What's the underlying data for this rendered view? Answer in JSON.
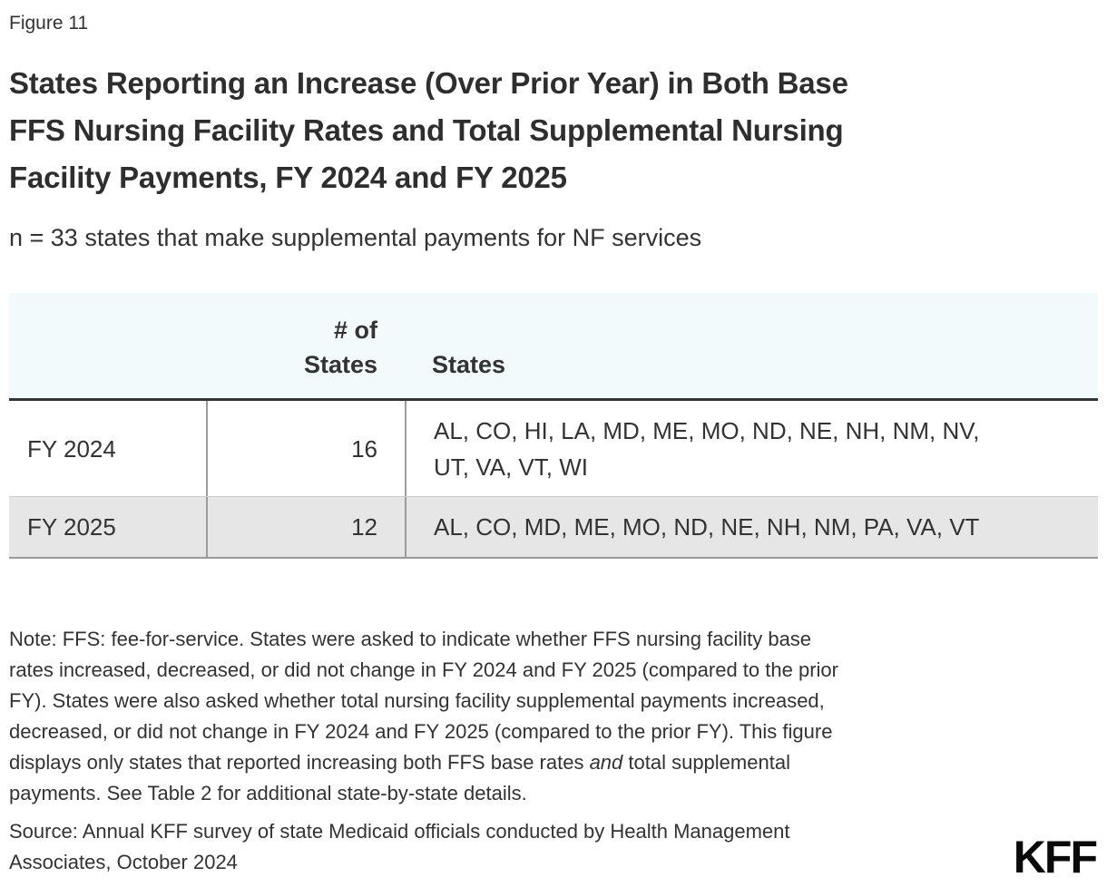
{
  "figure_label": "Figure 11",
  "title": "States Reporting an Increase (Over Prior Year) in Both Base\nFFS Nursing Facility Rates and Total Supplemental Nursing\nFacility Payments, FY 2024 and FY 2025",
  "subtitle": "n = 33 states that make supplemental payments for NF services",
  "table": {
    "header": {
      "count_label": "# of\nStates",
      "states_label": "States"
    },
    "rows": [
      {
        "year": "FY 2024",
        "count": "16",
        "states": "AL, CO, HI, LA, MD, ME, MO, ND, NE, NH, NM, NV,\nUT, VA, VT, WI"
      },
      {
        "year": "FY 2025",
        "count": "12",
        "states": "AL, CO, MD, ME, MO, ND, NE, NH, NM, PA, VA, VT"
      }
    ]
  },
  "note": {
    "lines": [
      "Note: FFS: fee-for-service. States were asked to indicate whether FFS nursing facility base",
      "rates increased, decreased, or did not change in FY 2024 and FY 2025 (compared to the prior",
      "FY). States were also asked whether total nursing facility supplemental payments increased,",
      "decreased, or did not change in FY 2024 and FY 2025 (compared to the prior FY). This figure"
    ],
    "line5": {
      "pre": "displays only states that reported increasing both FFS base rates ",
      "italic": "and",
      "post": " total supplemental"
    },
    "line6": "payments. See Table 2 for additional state-by-state details."
  },
  "source": "Source: Annual KFF survey of state Medicaid officials conducted by Health Management\nAssociates, October 2024",
  "logo_text": "KFF",
  "colors": {
    "header_bg": "#f3fafc",
    "row_alt_bg": "#e6e6e6",
    "header_rule": "#333333",
    "table_border": "#9c9c9c",
    "row_divider": "#cccccc",
    "text": "#333333",
    "logo": "#0a0a0a"
  },
  "chart_data": {
    "type": "table",
    "title": "States Reporting an Increase (Over Prior Year) in Both Base FFS Nursing Facility Rates and Total Supplemental Nursing Facility Payments, FY 2024 and FY 2025",
    "subtitle": "n = 33 states that make supplemental payments for NF services",
    "columns": [
      "",
      "# of States",
      "States"
    ],
    "categories": [
      "FY 2024",
      "FY 2025"
    ],
    "values": [
      16,
      12
    ],
    "rows": [
      [
        "FY 2024",
        16,
        "AL, CO, HI, LA, MD, ME, MO, ND, NE, NH, NM, NV, UT, VA, VT, WI"
      ],
      [
        "FY 2025",
        12,
        "AL, CO, MD, ME, MO, ND, NE, NH, NM, PA, VA, VT"
      ]
    ]
  }
}
